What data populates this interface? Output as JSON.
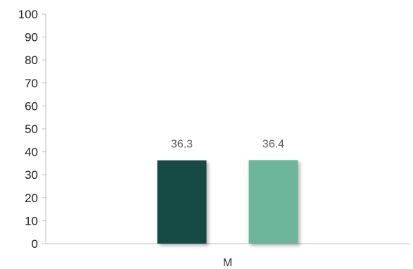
{
  "chart_data": {
    "type": "bar",
    "categories": [
      "M"
    ],
    "series": [
      {
        "values": [
          36.3
        ],
        "color": "#124c45"
      },
      {
        "values": [
          36.4
        ],
        "color": "#6db69c"
      }
    ],
    "value_labels": [
      "36.3",
      "36.4"
    ],
    "y_ticks": [
      "0",
      "10",
      "20",
      "30",
      "40",
      "50",
      "60",
      "70",
      "80",
      "90",
      "100"
    ],
    "ylim": [
      0,
      100
    ],
    "title": "",
    "xlabel": "",
    "ylabel": "",
    "grid": false,
    "legend": "none"
  }
}
